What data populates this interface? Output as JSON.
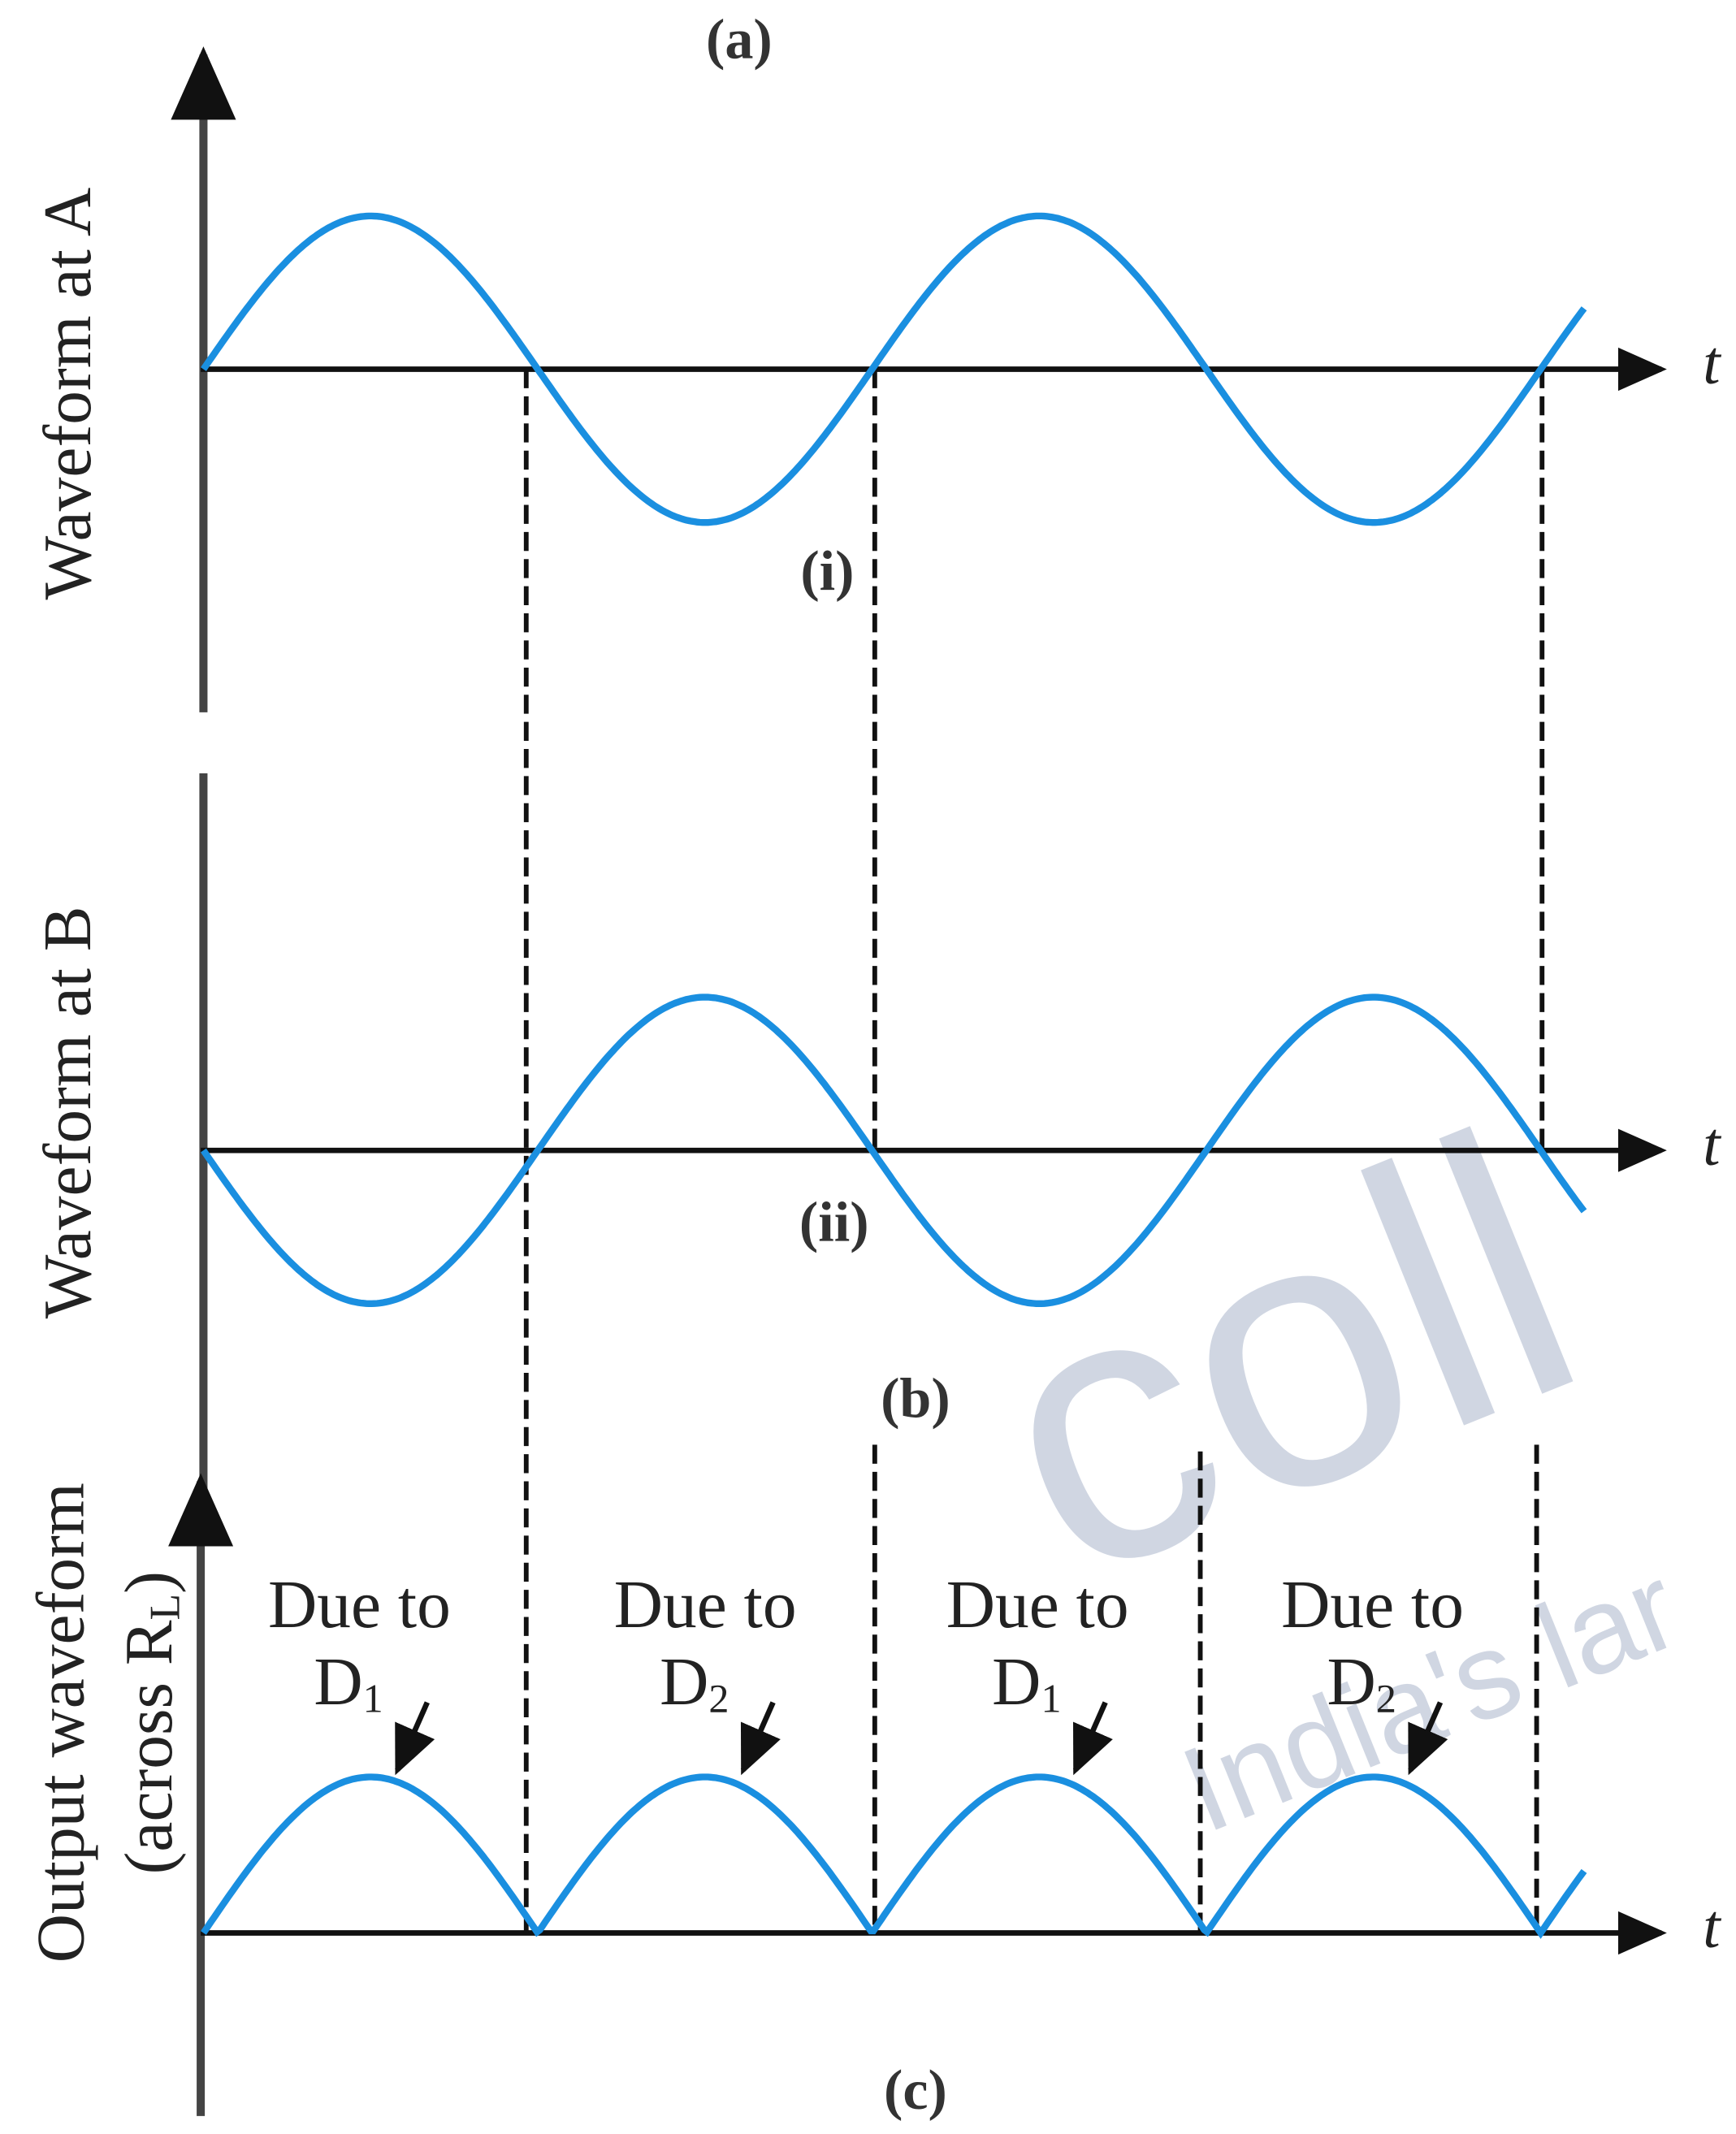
{
  "figure_labels": [
    "(a)",
    "(b)",
    "(c)"
  ],
  "panels": [
    {
      "y_label": "Waveform at A",
      "t_label": "t",
      "tag": "(i)"
    },
    {
      "y_label": "Waveform at B",
      "t_label": "t",
      "tag": "(ii)"
    },
    {
      "y_label": "Output waveform",
      "y_label_2": {
        "text": "(across R",
        "sub": "L",
        "end": ")"
      },
      "t_label": "t"
    }
  ],
  "annotations": [
    {
      "line1": "Due to",
      "line2": "D",
      "sub": "1"
    },
    {
      "line1": "Due to",
      "line2": "D",
      "sub": "2"
    },
    {
      "line1": "Due to",
      "line2": "D",
      "sub": "1"
    },
    {
      "line1": "Due to",
      "line2": "D",
      "sub": "2"
    }
  ],
  "watermark": [
    "coll",
    "India's lar"
  ]
}
